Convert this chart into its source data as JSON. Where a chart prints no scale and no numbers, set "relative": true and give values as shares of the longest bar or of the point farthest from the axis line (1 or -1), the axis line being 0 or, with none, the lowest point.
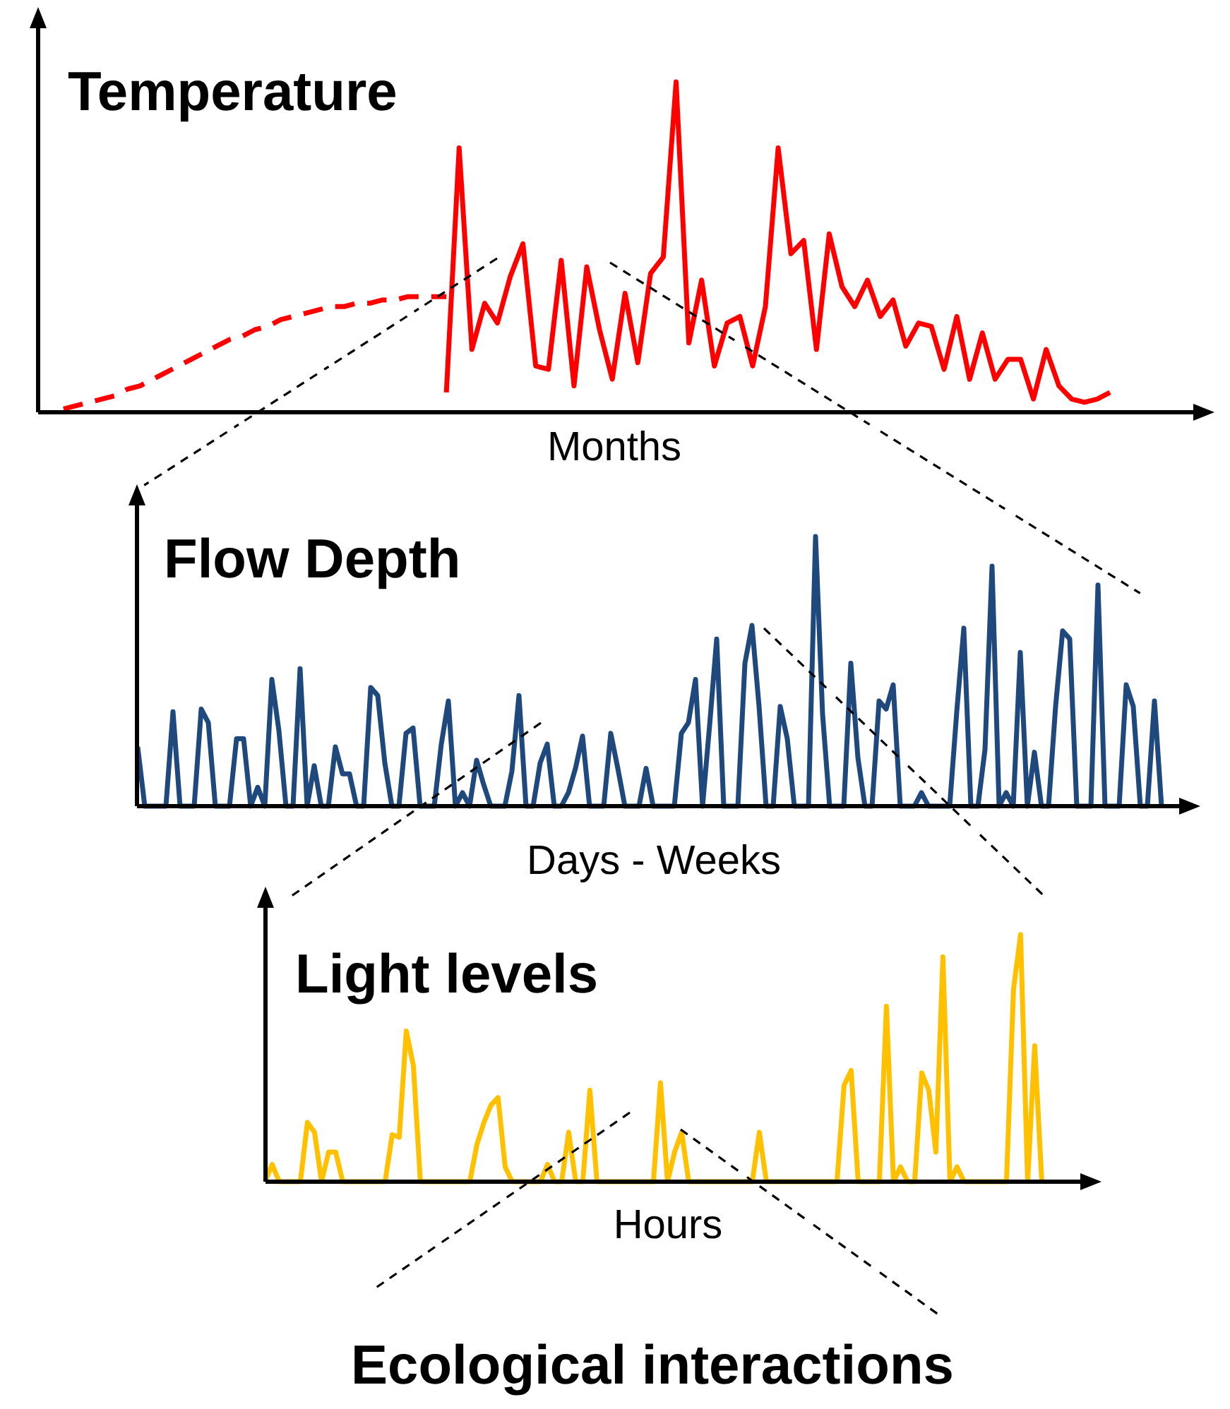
{
  "chart_data": [
    {
      "type": "line",
      "title": "Temperature",
      "xlabel": "Months",
      "relative": true,
      "marker": "none",
      "categories": [
        null,
        null,
        null,
        null,
        null,
        null,
        null,
        null,
        null,
        null,
        null,
        null,
        null,
        null,
        null,
        null,
        null,
        null,
        null,
        null,
        null,
        null,
        null,
        null,
        null,
        null,
        null,
        null,
        null,
        null,
        null,
        null,
        null,
        null,
        null,
        null,
        null,
        null,
        null,
        null,
        null,
        null,
        null,
        null,
        null,
        null,
        null,
        null,
        null,
        null,
        null,
        null,
        null,
        null,
        null,
        null,
        null,
        null,
        null,
        null,
        null,
        null,
        null,
        null,
        null,
        null,
        null,
        null,
        null,
        null,
        null,
        null,
        null,
        null,
        null,
        null,
        null,
        null,
        null,
        null,
        null,
        null,
        null
      ],
      "series": [
        {
          "color": "#ff0000",
          "line_style": "dashed",
          "values": [
            0.01,
            0.02,
            0.03,
            0.04,
            0.05,
            0.07,
            0.08,
            0.1,
            0.12,
            0.14,
            0.16,
            0.18,
            0.2,
            0.22,
            0.23,
            0.25,
            0.26,
            0.28,
            0.29,
            0.3,
            0.31,
            0.32,
            0.32,
            0.33,
            0.33,
            0.34,
            0.34,
            0.35,
            0.35,
            0.35,
            0.35,
            null,
            null,
            null,
            null,
            null,
            null,
            null,
            null,
            null,
            null,
            null,
            null,
            null,
            null,
            null,
            null,
            null,
            null,
            null,
            null,
            null,
            null,
            null,
            null,
            null,
            null,
            null,
            null,
            null,
            null,
            null,
            null,
            null,
            null,
            null,
            null,
            null,
            null,
            null,
            null,
            null,
            null,
            null,
            null,
            null,
            null,
            null,
            null,
            null,
            null,
            null,
            null
          ]
        },
        {
          "color": "#ff0000",
          "line_style": "solid",
          "values": [
            null,
            null,
            null,
            null,
            null,
            null,
            null,
            null,
            null,
            null,
            null,
            null,
            null,
            null,
            null,
            null,
            null,
            null,
            null,
            null,
            null,
            null,
            null,
            null,
            null,
            null,
            null,
            null,
            null,
            null,
            0.06,
            0.8,
            0.19,
            0.33,
            0.27,
            0.41,
            0.51,
            0.14,
            0.13,
            0.46,
            0.08,
            0.44,
            0.25,
            0.1,
            0.36,
            0.15,
            0.42,
            0.47,
            1,
            0.21,
            0.4,
            0.14,
            0.27,
            0.29,
            0.14,
            0.32,
            0.8,
            0.48,
            0.52,
            0.19,
            0.54,
            0.38,
            0.32,
            0.4,
            0.29,
            0.34,
            0.2,
            0.27,
            0.26,
            0.13,
            0.29,
            0.1,
            0.24,
            0.1,
            0.16,
            0.16,
            0.04,
            0.19,
            0.08,
            0.04,
            0.03,
            0.04,
            0.06
          ]
        }
      ]
    },
    {
      "type": "line",
      "title": "Flow Depth",
      "xlabel": "Days - Weeks",
      "relative": true,
      "marker": "none",
      "categories": [
        null,
        null,
        null,
        null,
        null,
        null,
        null,
        null,
        null,
        null,
        null,
        null,
        null,
        null,
        null,
        null,
        null,
        null,
        null,
        null,
        null,
        null,
        null,
        null,
        null,
        null,
        null,
        null,
        null,
        null,
        null,
        null,
        null,
        null,
        null,
        null,
        null,
        null,
        null,
        null,
        null,
        null,
        null,
        null,
        null,
        null,
        null,
        null,
        null,
        null,
        null,
        null,
        null,
        null,
        null,
        null,
        null,
        null,
        null,
        null,
        null,
        null,
        null,
        null,
        null,
        null,
        null,
        null,
        null,
        null,
        null,
        null,
        null,
        null,
        null,
        null,
        null,
        null,
        null,
        null,
        null,
        null,
        null,
        null,
        null,
        null,
        null,
        null,
        null,
        null,
        null,
        null,
        null,
        null,
        null,
        null,
        null,
        null,
        null,
        null,
        null,
        null,
        null,
        null,
        null,
        null,
        null,
        null,
        null,
        null,
        null,
        null,
        null,
        null,
        null,
        null,
        null,
        null,
        null,
        null,
        null,
        null,
        null,
        null,
        null,
        null,
        null,
        null,
        null,
        null,
        null,
        null,
        null,
        null,
        null,
        null,
        null,
        null,
        null,
        null,
        null,
        null,
        null,
        null,
        null,
        null
      ],
      "series": [
        {
          "color": "#1f497d",
          "values": [
            0.22,
            0,
            0,
            0,
            0,
            0.35,
            0,
            0,
            0,
            0.36,
            0.31,
            0,
            0,
            0,
            0.25,
            0.25,
            0,
            0.07,
            0,
            0.47,
            0.28,
            0,
            0,
            0.51,
            0,
            0.15,
            0,
            0,
            0.22,
            0.12,
            0.12,
            0,
            0,
            0.44,
            0.41,
            0.16,
            0,
            0,
            0.27,
            0.29,
            0,
            0,
            0,
            0.23,
            0.39,
            0,
            0.05,
            0,
            0.17,
            0.08,
            0,
            0,
            0,
            0.13,
            0.41,
            0,
            0,
            0.16,
            0.23,
            0,
            0,
            0.05,
            0.14,
            0.26,
            0,
            0,
            0,
            0.27,
            0.14,
            0,
            0,
            0,
            0.14,
            0,
            0,
            0,
            0,
            0.27,
            0.31,
            0.47,
            0,
            0.3,
            0.62,
            0,
            0,
            0,
            0.53,
            0.67,
            0.37,
            0,
            0,
            0.37,
            0.25,
            0,
            0,
            0,
            1,
            0.34,
            0,
            0,
            0,
            0.53,
            0.18,
            0,
            0,
            0.39,
            0.36,
            0.45,
            0,
            0,
            0,
            0.05,
            0,
            0,
            0,
            0,
            0.35,
            0.66,
            0,
            0,
            0.21,
            0.89,
            0,
            0.05,
            0,
            0.57,
            0,
            0.2,
            0,
            0,
            0.37,
            0.65,
            0.62,
            0,
            0,
            0,
            0.82,
            0,
            0,
            0,
            0.45,
            0.37,
            0,
            0,
            0.39,
            0
          ]
        }
      ]
    },
    {
      "type": "line",
      "title": "Light levels",
      "xlabel": "Hours",
      "relative": true,
      "marker": "none",
      "annotations": [
        "Ecological interactions"
      ],
      "categories": [
        null,
        null,
        null,
        null,
        null,
        null,
        null,
        null,
        null,
        null,
        null,
        null,
        null,
        null,
        null,
        null,
        null,
        null,
        null,
        null,
        null,
        null,
        null,
        null,
        null,
        null,
        null,
        null,
        null,
        null,
        null,
        null,
        null,
        null,
        null,
        null,
        null,
        null,
        null,
        null,
        null,
        null,
        null,
        null,
        null,
        null,
        null,
        null,
        null,
        null,
        null,
        null,
        null,
        null,
        null,
        null,
        null,
        null,
        null,
        null,
        null,
        null,
        null,
        null,
        null,
        null,
        null,
        null,
        null,
        null,
        null,
        null,
        null,
        null,
        null,
        null,
        null,
        null,
        null,
        null,
        null,
        null,
        null,
        null,
        null,
        null,
        null,
        null,
        null,
        null,
        null,
        null,
        null,
        null,
        null,
        null,
        null,
        null,
        null,
        null,
        null,
        null,
        null,
        null,
        null,
        null,
        null,
        null,
        null,
        null,
        null
      ],
      "series": [
        {
          "color": "#ffc000",
          "values": [
            0,
            0.07,
            0,
            0,
            0,
            0,
            0.24,
            0.2,
            0,
            0.12,
            0.12,
            0,
            0,
            0,
            0,
            0,
            0,
            0,
            0.19,
            0.18,
            0.61,
            0.47,
            0,
            0,
            0,
            0,
            0,
            0,
            0,
            0,
            0.15,
            0.24,
            0.31,
            0.34,
            0.06,
            0,
            0,
            0,
            0,
            0,
            0.07,
            0,
            0,
            0.2,
            0,
            0,
            0.37,
            0,
            0,
            0,
            0,
            0,
            0,
            0,
            0,
            0,
            0.4,
            0,
            0.12,
            0.2,
            0,
            0,
            0,
            0,
            0,
            0,
            0,
            0,
            0,
            0,
            0.2,
            0,
            0,
            0,
            0,
            0,
            0,
            0,
            0,
            0,
            0,
            0,
            0.39,
            0.45,
            0,
            0,
            0,
            0,
            0.71,
            0,
            0.06,
            0,
            0,
            0.44,
            0.37,
            0.12,
            0.91,
            0,
            0.06,
            0,
            0,
            0,
            0,
            0,
            0,
            0,
            0.78,
            1,
            0,
            0.55,
            0
          ]
        }
      ]
    }
  ]
}
